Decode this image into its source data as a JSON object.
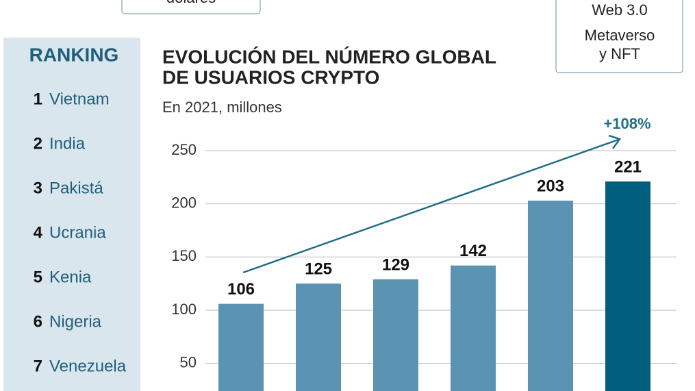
{
  "chart_data": {
    "type": "bar",
    "title": [
      "EVOLUCIÓN DEL NÚMERO GLOBAL",
      "DE USUARIOS CRYPTO"
    ],
    "subtitle": "En 2021, millones",
    "annotation": "+108%",
    "categories": [
      null,
      null,
      null,
      null,
      null,
      null
    ],
    "values": [
      106,
      125,
      129,
      142,
      203,
      221
    ],
    "colors": [
      "#5b93b2",
      "#5b93b2",
      "#5b93b2",
      "#5b93b2",
      "#5b93b2",
      "#005f7f"
    ],
    "ylim": [
      24,
      250
    ],
    "yticks": [
      50,
      100,
      150,
      200,
      250
    ],
    "grid": true
  },
  "ranking": {
    "title": "RANKING",
    "items": [
      {
        "rank": "1",
        "name": "Vietnam"
      },
      {
        "rank": "2",
        "name": "India"
      },
      {
        "rank": "3",
        "name": "Pakistá"
      },
      {
        "rank": "4",
        "name": "Ucrania"
      },
      {
        "rank": "5",
        "name": "Kenia"
      },
      {
        "rank": "6",
        "name": "Nigeria"
      },
      {
        "rank": "7",
        "name": "Venezuela"
      }
    ]
  },
  "top_boxes": {
    "left": "dólares",
    "right": [
      "Web 3.0",
      "Metaverso",
      "y NFT"
    ]
  }
}
